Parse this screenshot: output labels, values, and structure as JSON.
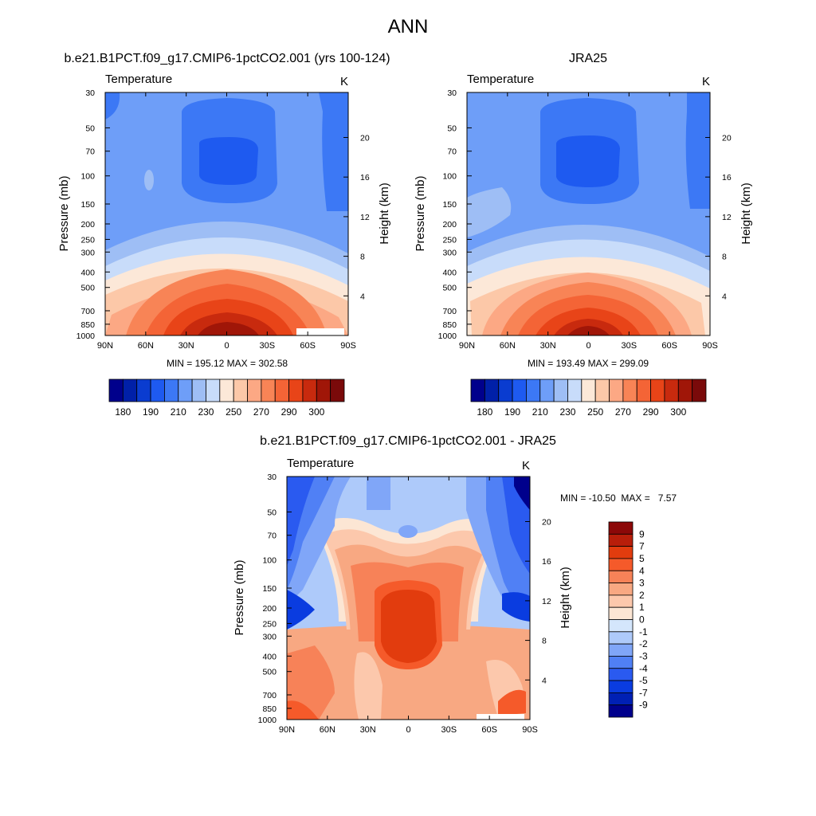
{
  "figure": {
    "title": "ANN"
  },
  "colors": {
    "abs_colorbar": [
      "#00008c",
      "#0020a8",
      "#0a3cd0",
      "#1e5af0",
      "#3c78f5",
      "#6e9ef8",
      "#9ebef5",
      "#c8dcfa",
      "#fce8d8",
      "#fcc8a8",
      "#fca884",
      "#f88456",
      "#f46436",
      "#e84418",
      "#c82a0e",
      "#a01608",
      "#7a0a0a"
    ],
    "diff_colorbar": [
      "#00008c",
      "#0020b4",
      "#0a3ce0",
      "#2a5af0",
      "#5080f5",
      "#80a6f8",
      "#aecafa",
      "#d4e6fc",
      "#fce6d4",
      "#fcc8ac",
      "#f8a882",
      "#f78258",
      "#f55a2a",
      "#e23c0e",
      "#b81e0a",
      "#8c0808"
    ]
  },
  "chart_data": [
    {
      "type": "contour",
      "panel": "model",
      "title": "b.e21.B1PCT.f09_g17.CMIP6-1pctCO2.001 (yrs 100-124)",
      "variable_label": "Temperature",
      "units": "K",
      "ylabel": "Pressure (mb)",
      "ylabel_right": "Height (km)",
      "x_ticks": [
        "90N",
        "60N",
        "30N",
        "0",
        "30S",
        "60S",
        "90S"
      ],
      "y_ticks": [
        "30",
        "50",
        "70",
        "100",
        "150",
        "200",
        "250",
        "300",
        "400",
        "500",
        "700",
        "850",
        "1000"
      ],
      "y_right_ticks": [
        "20",
        "16",
        "12",
        "8",
        "4"
      ],
      "stats": "MIN = 195.12  MAX = 302.58",
      "colorbar_labels": [
        "180",
        "190",
        "210",
        "230",
        "250",
        "270",
        "290",
        "300"
      ],
      "colorbar_levels": [
        180,
        185,
        190,
        200,
        210,
        220,
        230,
        240,
        250,
        260,
        270,
        280,
        290,
        295,
        300
      ]
    },
    {
      "type": "contour",
      "panel": "obs",
      "title": "JRA25",
      "variable_label": "Temperature",
      "units": "K",
      "ylabel": "Pressure (mb)",
      "ylabel_right": "Height (km)",
      "x_ticks": [
        "90N",
        "60N",
        "30N",
        "0",
        "30S",
        "60S",
        "90S"
      ],
      "y_ticks": [
        "30",
        "50",
        "70",
        "100",
        "150",
        "200",
        "250",
        "300",
        "400",
        "500",
        "700",
        "850",
        "1000"
      ],
      "y_right_ticks": [
        "20",
        "16",
        "12",
        "8",
        "4"
      ],
      "stats": "MIN = 193.49  MAX = 299.09",
      "colorbar_labels": [
        "180",
        "190",
        "210",
        "230",
        "250",
        "270",
        "290",
        "300"
      ],
      "colorbar_levels": [
        180,
        185,
        190,
        200,
        210,
        220,
        230,
        240,
        250,
        260,
        270,
        280,
        290,
        295,
        300
      ]
    },
    {
      "type": "contour",
      "panel": "difference",
      "title": "b.e21.B1PCT.f09_g17.CMIP6-1pctCO2.001 - JRA25",
      "variable_label": "Temperature",
      "units": "K",
      "ylabel": "Pressure (mb)",
      "ylabel_right": "Height (km)",
      "x_ticks": [
        "90N",
        "60N",
        "30N",
        "0",
        "30S",
        "60S",
        "90S"
      ],
      "y_ticks": [
        "30",
        "50",
        "70",
        "100",
        "150",
        "200",
        "250",
        "300",
        "400",
        "500",
        "700",
        "850",
        "1000"
      ],
      "y_right_ticks": [
        "20",
        "16",
        "12",
        "8",
        "4"
      ],
      "stats": "MIN = -10.50  MAX =   7.57",
      "colorbar_labels": [
        "9",
        "7",
        "5",
        "4",
        "3",
        "2",
        "1",
        "0",
        "-1",
        "-2",
        "-3",
        "-4",
        "-5",
        "-7",
        "-9"
      ],
      "colorbar_levels": [
        -9,
        -7,
        -5,
        -4,
        -3,
        -2,
        -1,
        0,
        1,
        2,
        3,
        4,
        5,
        7,
        9
      ]
    }
  ]
}
